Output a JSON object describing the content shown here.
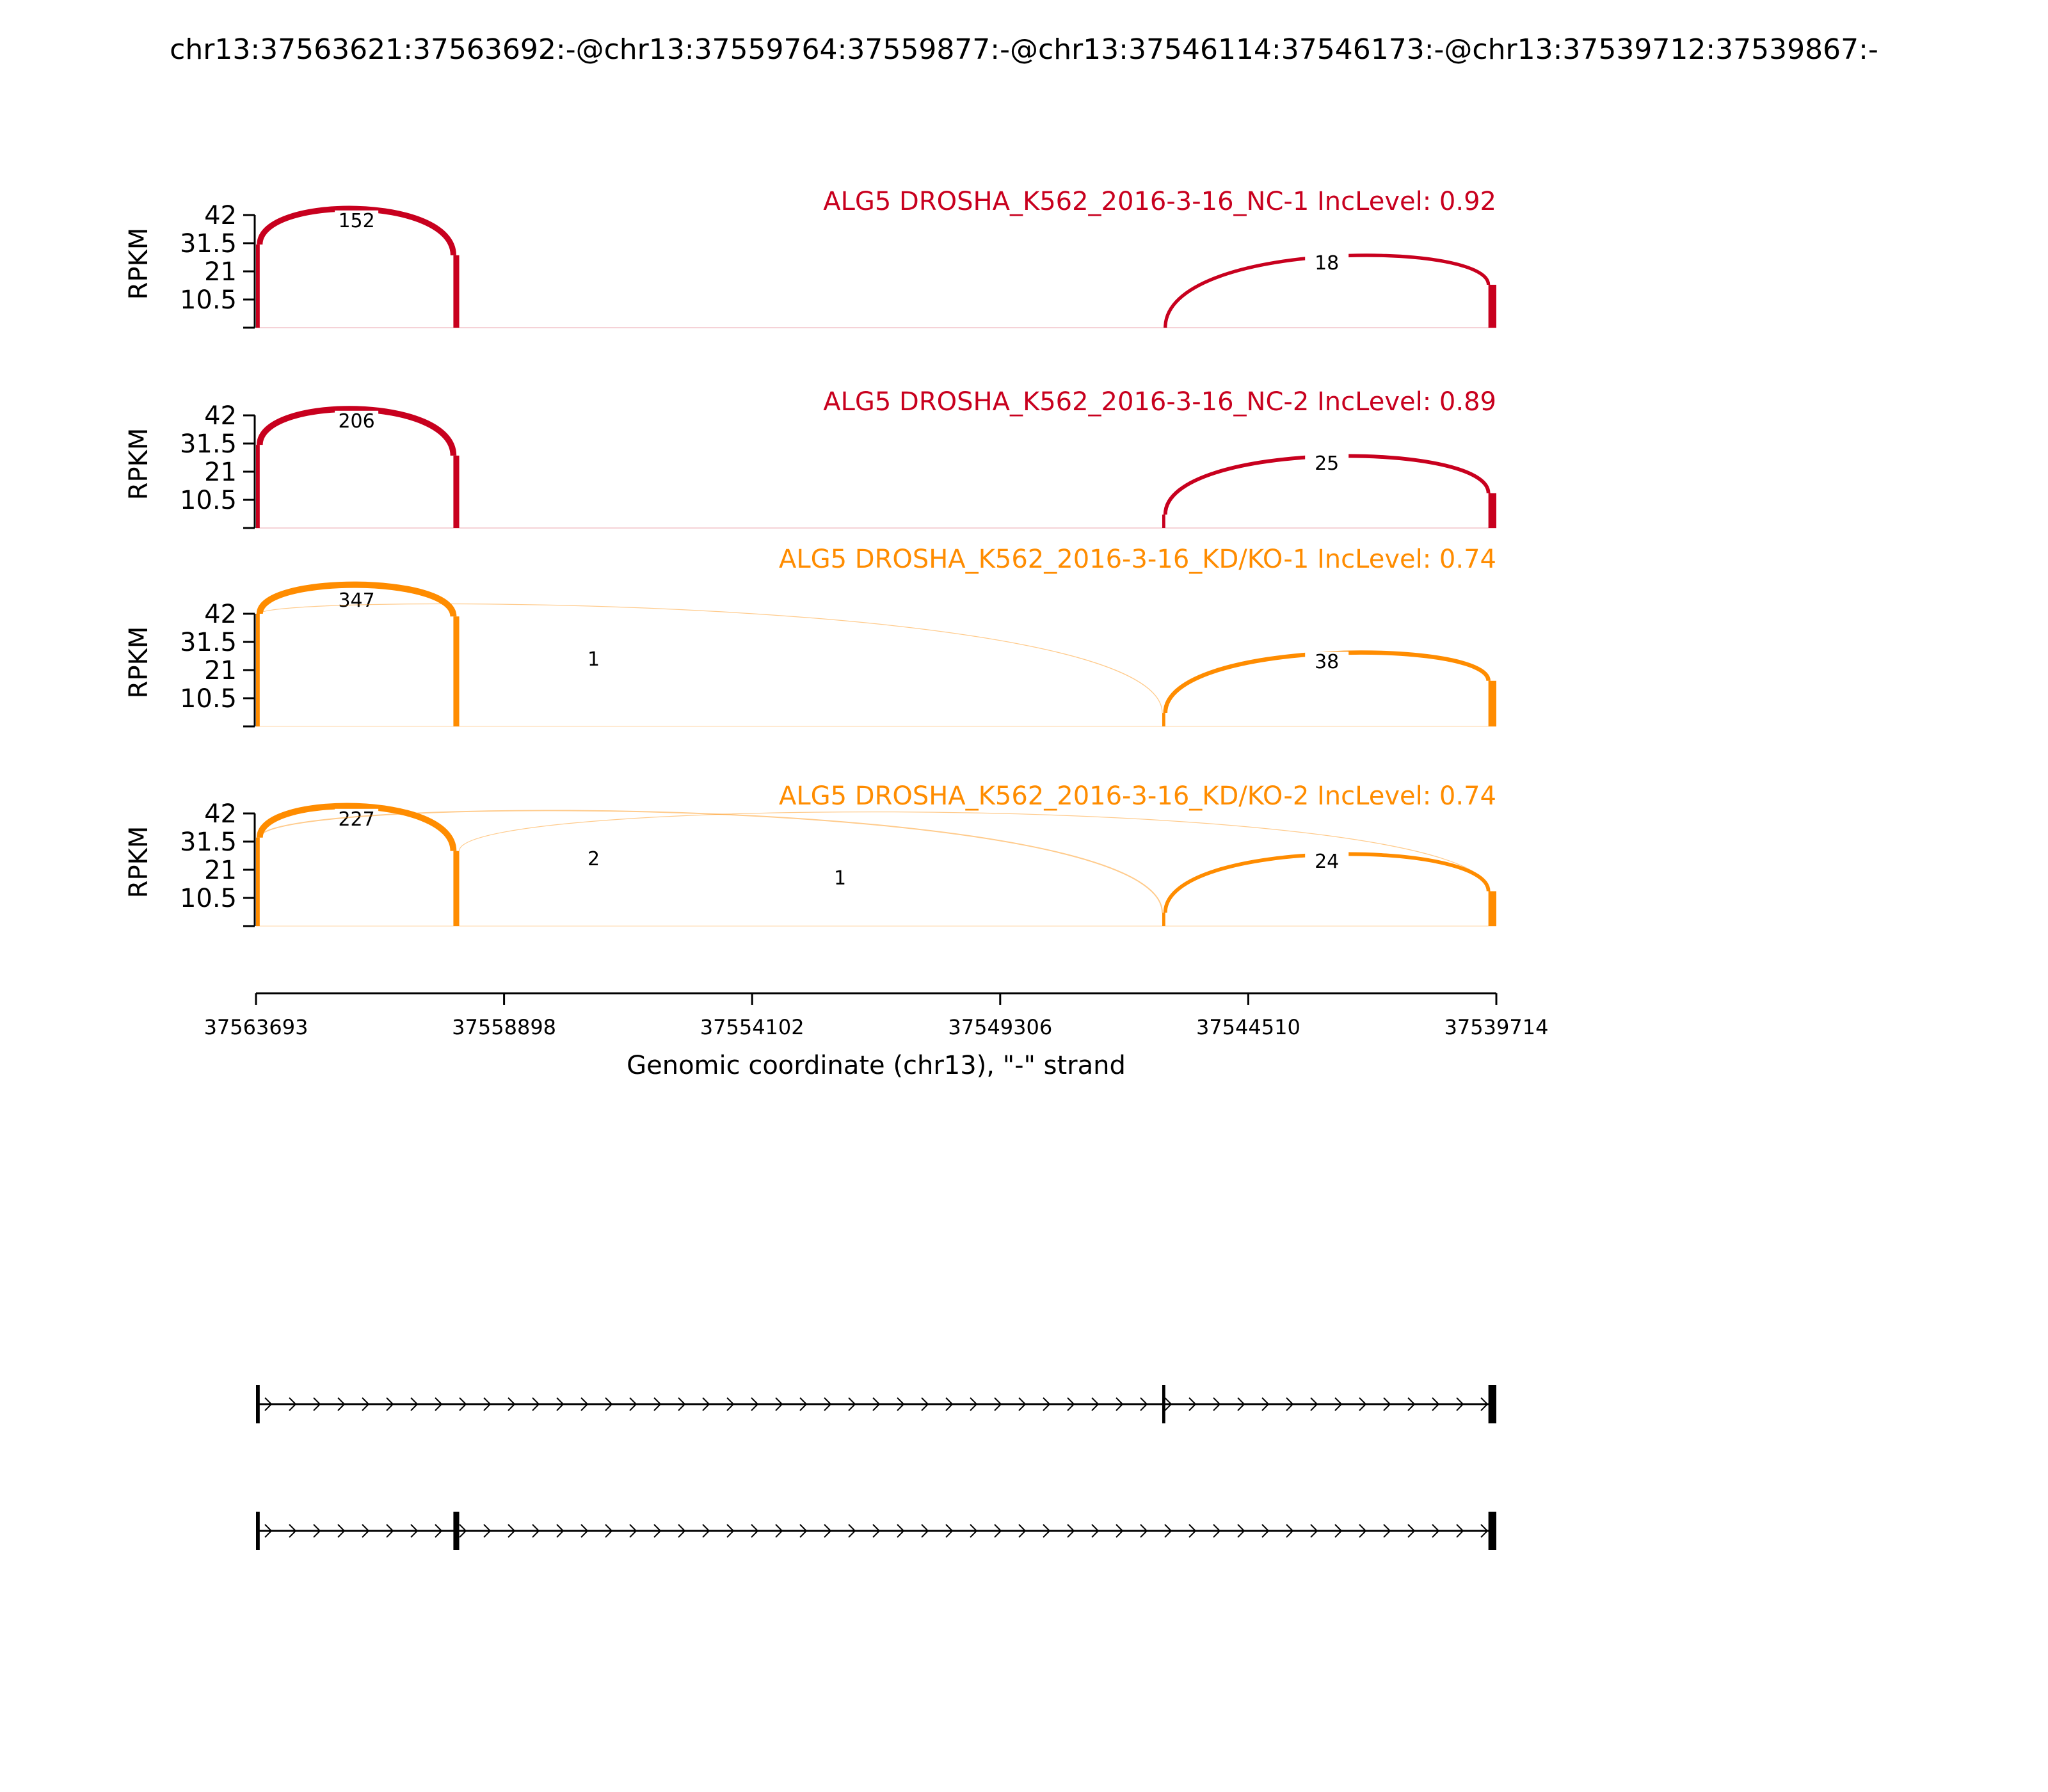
{
  "title": "chr13:37563621:37563692:-@chr13:37559764:37559877:-@chr13:37546114:37546173:-@chr13:37539712:37539867:-",
  "colors": {
    "nc": "#c8001e",
    "kd": "#ff8c00",
    "axis": "#000000"
  },
  "chart_data": {
    "type": "sashimi",
    "xlabel": "Genomic coordinate (chr13), \"-\" strand",
    "ylabel": "RPKM",
    "x_range": [
      37563693,
      37539714
    ],
    "x_ticks": [
      "37563693",
      "37558898",
      "37554102",
      "37549306",
      "37544510",
      "37539714"
    ],
    "y_ticks": [
      "42",
      "31.5",
      "21",
      "10.5"
    ],
    "ylim": [
      0,
      42
    ],
    "exons": [
      {
        "start": 37563693,
        "end": 37563621
      },
      {
        "start": 37559877,
        "end": 37559764
      },
      {
        "start": 37546173,
        "end": 37546114
      },
      {
        "start": 37539867,
        "end": 37539714
      }
    ],
    "samples": [
      {
        "label": "ALG5 DROSHA_K562_2016-3-16_NC-1 IncLevel: 0.92",
        "group": "nc",
        "exon_peaks": [
          31,
          27,
          0,
          16
        ],
        "junctions": [
          {
            "from": 37563621,
            "to": 37559877,
            "count": "152"
          },
          {
            "from": 37546114,
            "to": 37539867,
            "count": "18"
          }
        ]
      },
      {
        "label": "ALG5 DROSHA_K562_2016-3-16_NC-2 IncLevel: 0.89",
        "group": "nc",
        "exon_peaks": [
          31,
          27,
          5,
          13
        ],
        "junctions": [
          {
            "from": 37563621,
            "to": 37559877,
            "count": "206"
          },
          {
            "from": 37546114,
            "to": 37539867,
            "count": "25"
          }
        ]
      },
      {
        "label": "ALG5 DROSHA_K562_2016-3-16_KD/KO-1 IncLevel: 0.74",
        "group": "kd",
        "exon_peaks": [
          42,
          41,
          5,
          17
        ],
        "junctions": [
          {
            "from": 37563621,
            "to": 37559877,
            "count": "347"
          },
          {
            "from": 37563621,
            "to": 37546173,
            "count": "1"
          },
          {
            "from": 37546114,
            "to": 37539867,
            "count": "38"
          }
        ]
      },
      {
        "label": "ALG5 DROSHA_K562_2016-3-16_KD/KO-2 IncLevel: 0.74",
        "group": "kd",
        "exon_peaks": [
          33,
          28,
          5,
          13
        ],
        "junctions": [
          {
            "from": 37563621,
            "to": 37559877,
            "count": "227"
          },
          {
            "from": 37563621,
            "to": 37546173,
            "count": "2"
          },
          {
            "from": 37559764,
            "to": 37539867,
            "count": "1"
          },
          {
            "from": 37546114,
            "to": 37539867,
            "count": "24"
          }
        ]
      }
    ],
    "isoforms": [
      {
        "exons": [
          0,
          2,
          3
        ]
      },
      {
        "exons": [
          0,
          1,
          3
        ]
      }
    ]
  }
}
